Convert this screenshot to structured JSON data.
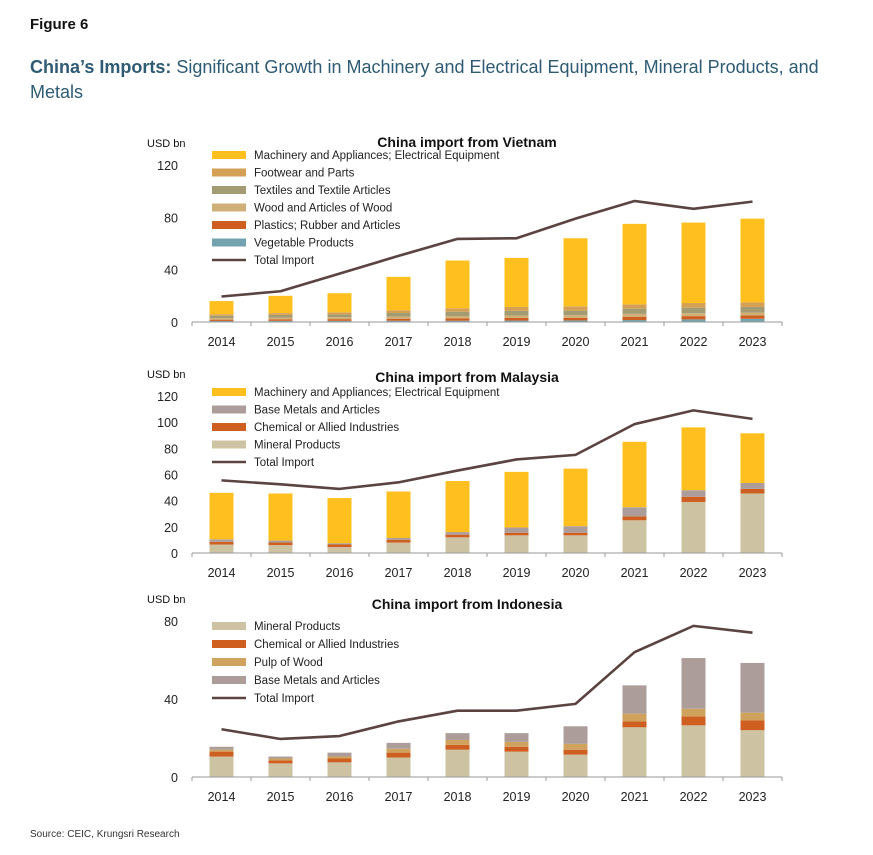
{
  "figure_label": "Figure 6",
  "headline_bold": "China’s Imports:",
  "headline_rest": "Significant Growth in Machinery and Electrical Equipment, Mineral Products, and Metals",
  "source": "Source: CEIC, Krungsri Research",
  "colors": {
    "machinery": "#ffc01f",
    "footwear": "#d4a055",
    "textiles": "#a39c72",
    "wood": "#cfb078",
    "plastics": "#cf5f20",
    "vegetable": "#74a3b0",
    "base_metals": "#ad9d9a",
    "chemical": "#cf5f20",
    "mineral": "#cdc3a2",
    "pulp": "#cfa25e",
    "total_line": "#5a4341"
  },
  "chart_data": [
    {
      "type": "bar",
      "stacked": true,
      "title": "China import from Vietnam",
      "ylabel": "USD bn",
      "ylim": [
        0,
        120
      ],
      "yticks": [
        0,
        40,
        80,
        120
      ],
      "categories": [
        "2014",
        "2015",
        "2016",
        "2017",
        "2018",
        "2019",
        "2020",
        "2021",
        "2022",
        "2023"
      ],
      "series": [
        {
          "name": "Vegetable Products",
          "color_key": "vegetable",
          "values": [
            0.8,
            0.9,
            0.9,
            1.0,
            1.0,
            1.1,
            1.2,
            1.5,
            2.0,
            2.5
          ]
        },
        {
          "name": "Plastics; Rubber and Articles",
          "color_key": "plastics",
          "values": [
            1.0,
            1.2,
            1.3,
            1.5,
            1.8,
            2.0,
            2.0,
            2.5,
            2.5,
            2.5
          ]
        },
        {
          "name": "Wood and Articles of Wood",
          "color_key": "wood",
          "values": [
            1.2,
            1.3,
            1.4,
            1.6,
            1.8,
            1.9,
            2.0,
            2.2,
            2.2,
            2.3
          ]
        },
        {
          "name": "Textiles and Textile Articles",
          "color_key": "textiles",
          "values": [
            1.8,
            2.0,
            2.2,
            2.8,
            3.2,
            3.5,
            3.5,
            4.0,
            4.2,
            4.2
          ]
        },
        {
          "name": "Footwear and Parts",
          "color_key": "footwear",
          "values": [
            1.2,
            1.4,
            1.6,
            2.1,
            2.7,
            3.0,
            3.3,
            3.3,
            3.6,
            3.5
          ]
        },
        {
          "name": "Machinery and Appliances; Electrical Equipment",
          "color_key": "machinery",
          "values": [
            10.0,
            13.2,
            14.6,
            25.5,
            36.5,
            37.5,
            52.0,
            61.5,
            61.5,
            64.0
          ]
        }
      ],
      "legend_order": [
        "Machinery and Appliances; Electrical Equipment",
        "Footwear and Parts",
        "Textiles and Textile Articles",
        "Wood and Articles of Wood",
        "Plastics; Rubber and Articles",
        "Vegetable Products"
      ],
      "line": {
        "name": "Total Import",
        "values": [
          19.5,
          23.5,
          37.0,
          50.5,
          63.5,
          64.0,
          79.0,
          92.5,
          86.5,
          92.0
        ]
      },
      "legend_placement": "top-left"
    },
    {
      "type": "bar",
      "stacked": true,
      "title": "China import from Malaysia",
      "ylabel": "USD bn",
      "ylim": [
        0,
        120
      ],
      "yticks": [
        0,
        20,
        40,
        60,
        80,
        100,
        120
      ],
      "categories": [
        "2014",
        "2015",
        "2016",
        "2017",
        "2018",
        "2019",
        "2020",
        "2021",
        "2022",
        "2023"
      ],
      "series": [
        {
          "name": "Mineral Products",
          "color_key": "mineral",
          "values": [
            6.5,
            6.0,
            4.5,
            8.0,
            12.0,
            13.5,
            13.5,
            25.0,
            39.0,
            45.5
          ]
        },
        {
          "name": "Chemical or  Allied Industries",
          "color_key": "chemical",
          "values": [
            2.0,
            2.0,
            2.0,
            2.0,
            2.0,
            2.0,
            2.0,
            3.0,
            4.0,
            3.5
          ]
        },
        {
          "name": "Base Metals and Articles",
          "color_key": "base_metals",
          "values": [
            2.0,
            1.5,
            1.0,
            1.5,
            2.0,
            4.0,
            5.0,
            7.0,
            5.0,
            4.5
          ]
        },
        {
          "name": "Machinery and Appliances; Electrical Equipment",
          "color_key": "machinery",
          "values": [
            35.5,
            36.0,
            34.5,
            35.5,
            39.0,
            42.5,
            44.0,
            50.0,
            48.0,
            38.0
          ]
        }
      ],
      "legend_order": [
        "Machinery and Appliances; Electrical Equipment",
        "Base Metals and Articles",
        "Chemical or  Allied Industries",
        "Mineral Products"
      ],
      "line": {
        "name": "Total Import",
        "values": [
          55.5,
          52.5,
          49.0,
          54.0,
          63.0,
          71.5,
          75.0,
          98.5,
          109.0,
          102.5
        ]
      },
      "legend_placement": "top-left"
    },
    {
      "type": "bar",
      "stacked": true,
      "title": "China import from Indonesia",
      "ylabel": "USD bn",
      "ylim": [
        0,
        80
      ],
      "yticks": [
        0,
        40,
        80
      ],
      "categories": [
        "2014",
        "2015",
        "2016",
        "2017",
        "2018",
        "2019",
        "2020",
        "2021",
        "2022",
        "2023"
      ],
      "series": [
        {
          "name": "Mineral Products",
          "color_key": "mineral",
          "values": [
            10.5,
            7.0,
            7.5,
            10.0,
            14.0,
            13.0,
            11.5,
            25.5,
            26.5,
            24.0
          ]
        },
        {
          "name": "Chemical or  Allied Industries",
          "color_key": "chemical",
          "values": [
            2.5,
            1.5,
            2.0,
            2.5,
            2.5,
            2.5,
            2.5,
            3.0,
            4.5,
            5.0
          ]
        },
        {
          "name": "Pulp of Wood",
          "color_key": "pulp",
          "values": [
            1.0,
            1.0,
            1.0,
            2.0,
            2.5,
            2.5,
            3.0,
            4.0,
            4.0,
            4.0
          ]
        },
        {
          "name": "Base Metals and Articles",
          "color_key": "base_metals",
          "values": [
            1.5,
            1.0,
            2.0,
            3.0,
            3.5,
            4.5,
            9.0,
            14.5,
            26.0,
            25.5
          ]
        }
      ],
      "legend_order": [
        "Mineral Products",
        "Chemical or  Allied Industries",
        "Pulp of Wood",
        "Base Metals and Articles"
      ],
      "line": {
        "name": "Total Import",
        "values": [
          24.5,
          19.5,
          21.0,
          28.5,
          34.0,
          34.0,
          37.5,
          64.0,
          77.5,
          74.0
        ]
      },
      "legend_placement": "top-left"
    }
  ]
}
